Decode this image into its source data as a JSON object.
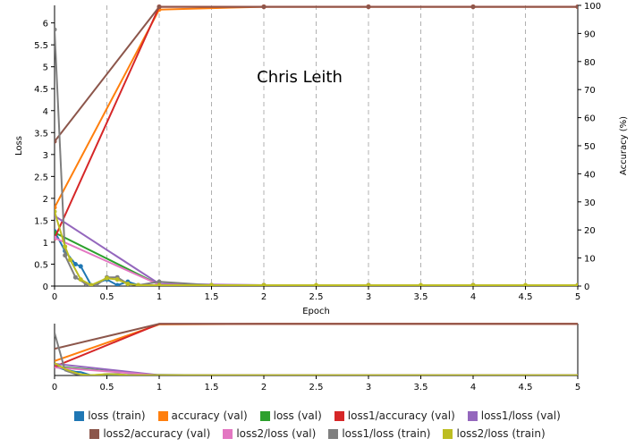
{
  "annotation": "Chris Leith",
  "chart_data": {
    "type": "line",
    "xlabel": "Epoch",
    "ylabel_left": "Loss",
    "ylabel_right": "Accuracy (%)",
    "xlim": [
      0,
      5
    ],
    "ylim_left": [
      0,
      6.4
    ],
    "ylim_right": [
      0,
      100
    ],
    "x_ticks": [
      "0",
      "0.5",
      "1",
      "1.5",
      "2",
      "2.5",
      "3",
      "3.5",
      "4",
      "4.5",
      "5"
    ],
    "left_ticks": [
      "0",
      "0.5",
      "1",
      "1.5",
      "2",
      "2.5",
      "3",
      "3.5",
      "4",
      "4.5",
      "5",
      "5.5",
      "6"
    ],
    "right_ticks": [
      "0",
      "10",
      "20",
      "30",
      "40",
      "50",
      "60",
      "70",
      "80",
      "90",
      "100"
    ],
    "grid": "vertical dashed at x ticks",
    "series": [
      {
        "name": "loss (train)",
        "color": "#1f77b4",
        "axis": "left",
        "markers": true,
        "x": [
          0,
          0.1,
          0.2,
          0.25,
          0.35,
          0.5,
          0.6,
          0.7,
          0.8,
          1,
          1.5,
          2,
          3,
          4,
          5
        ],
        "y": [
          1.25,
          0.8,
          0.5,
          0.45,
          0.02,
          0.15,
          0.02,
          0.1,
          0.02,
          0.02,
          0.02,
          0.02,
          0.02,
          0.02,
          0.02
        ]
      },
      {
        "name": "accuracy (val)",
        "color": "#ff7f0e",
        "axis": "right",
        "markers": true,
        "x": [
          0,
          1,
          2,
          3,
          4,
          5
        ],
        "y": [
          28,
          98.5,
          99.5,
          99.5,
          99.5,
          99.5
        ]
      },
      {
        "name": "loss (val)",
        "color": "#2ca02c",
        "axis": "left",
        "markers": true,
        "x": [
          0,
          1,
          2,
          3,
          4,
          5
        ],
        "y": [
          1.22,
          0.03,
          0.02,
          0.02,
          0.02,
          0.02
        ]
      },
      {
        "name": "loss1/accuracy (val)",
        "color": "#d62728",
        "axis": "right",
        "markers": true,
        "x": [
          0,
          1,
          2,
          3,
          4,
          5
        ],
        "y": [
          17,
          99.5,
          99.5,
          99.5,
          99.5,
          99.5
        ]
      },
      {
        "name": "loss1/loss (val)",
        "color": "#9467bd",
        "axis": "left",
        "markers": true,
        "x": [
          0,
          1,
          2,
          3,
          4,
          5
        ],
        "y": [
          1.6,
          0.05,
          0.02,
          0.02,
          0.02,
          0.02
        ]
      },
      {
        "name": "loss2/accuracy (val)",
        "color": "#8c564b",
        "axis": "right",
        "markers": true,
        "x": [
          0,
          1,
          2,
          3,
          4,
          5
        ],
        "y": [
          51.5,
          99.5,
          99.5,
          99.5,
          99.5,
          99.5
        ]
      },
      {
        "name": "loss2/loss (val)",
        "color": "#e377c2",
        "axis": "left",
        "markers": true,
        "x": [
          0,
          1,
          2,
          3,
          4,
          5
        ],
        "y": [
          1.1,
          0.03,
          0.02,
          0.02,
          0.02,
          0.02
        ]
      },
      {
        "name": "loss1/loss (train)",
        "color": "#7f7f7f",
        "axis": "left",
        "markers": true,
        "x": [
          0,
          0.1,
          0.2,
          0.3,
          0.4,
          0.5,
          0.6,
          0.7,
          0.8,
          1,
          1.5,
          2,
          3,
          4,
          5
        ],
        "y": [
          5.85,
          0.7,
          0.2,
          0.05,
          0.02,
          0.2,
          0.2,
          0.05,
          0.02,
          0.1,
          0.02,
          0.02,
          0.02,
          0.02,
          0.02
        ]
      },
      {
        "name": "loss2/loss (train)",
        "color": "#bcbd22",
        "axis": "left",
        "markers": true,
        "x": [
          0,
          0.1,
          0.15,
          0.25,
          0.35,
          0.5,
          0.6,
          0.7,
          0.8,
          1,
          1.5,
          2,
          2.5,
          3,
          3.5,
          4,
          4.5,
          5
        ],
        "y": [
          1.7,
          0.9,
          0.6,
          0.15,
          0.02,
          0.18,
          0.15,
          0.05,
          0.02,
          0.02,
          0.02,
          0.02,
          0.02,
          0.02,
          0.02,
          0.02,
          0.02,
          0.02
        ]
      }
    ],
    "legend_rows": [
      [
        "loss (train)",
        "accuracy (val)",
        "loss (val)",
        "loss1/accuracy (val)",
        "loss1/loss (val)"
      ],
      [
        "loss2/accuracy (val)",
        "loss2/loss (val)",
        "loss1/loss (train)",
        "loss2/loss (train)"
      ]
    ]
  }
}
